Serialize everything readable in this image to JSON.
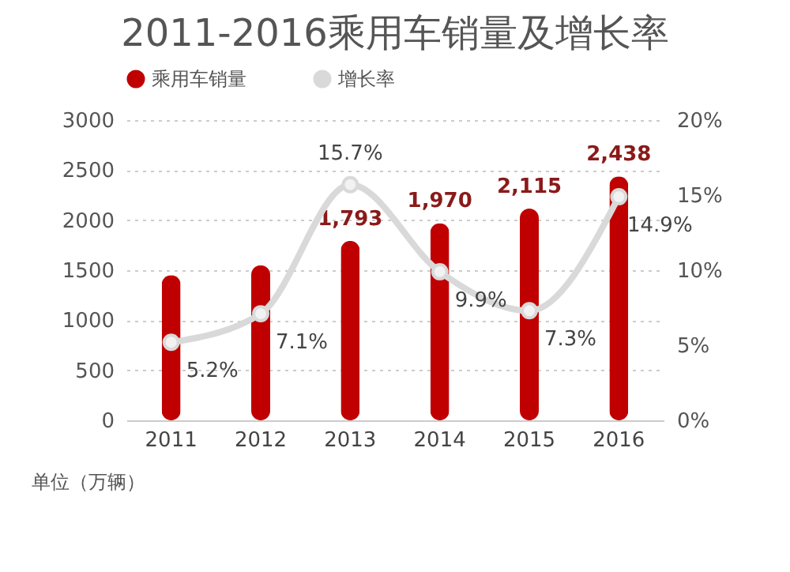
{
  "chart_data": {
    "type": "bar",
    "title": "2011-2016乘用车销量及增长率",
    "categories": [
      "2011",
      "2012",
      "2013",
      "2014",
      "2015",
      "2016"
    ],
    "series": [
      {
        "name": "乘用车销量",
        "color": "#c00000",
        "values": [
          1450,
          1550,
          1793,
          1970,
          2115,
          2438
        ],
        "value_labels": [
          null,
          null,
          "1,793",
          "1,970",
          "2,115",
          "2,438"
        ]
      },
      {
        "name": "增长率",
        "type": "line",
        "axis": "y2",
        "color": "#d9d9d9",
        "values": [
          5.2,
          7.1,
          15.7,
          9.9,
          7.3,
          14.9
        ],
        "value_labels": [
          "5.2%",
          "7.1%",
          "15.7%",
          "9.9%",
          "7.3%",
          "14.9%"
        ]
      }
    ],
    "ylim": [
      0,
      3000
    ],
    "yticks": [
      0,
      500,
      1000,
      1500,
      2000,
      2500,
      3000
    ],
    "y2lim": [
      0,
      20
    ],
    "y2ticks": [
      {
        "value": 0,
        "label": "0%"
      },
      {
        "value": 5,
        "label": "5%"
      },
      {
        "value": 10,
        "label": "10%"
      },
      {
        "value": 15,
        "label": "15%"
      },
      {
        "value": 20,
        "label": "20%"
      }
    ],
    "grid": "y",
    "legend": "top",
    "marker": "circle",
    "annotations": [
      "单位（万辆）"
    ]
  }
}
